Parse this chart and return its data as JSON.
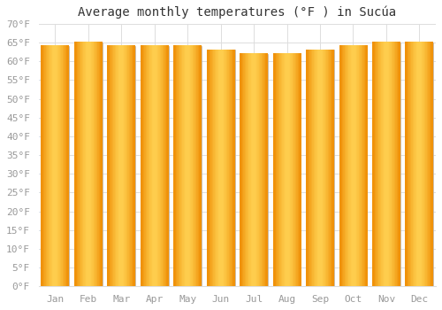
{
  "title": "Average monthly temperatures (°F ) in Sucúa",
  "months": [
    "Jan",
    "Feb",
    "Mar",
    "Apr",
    "May",
    "Jun",
    "Jul",
    "Aug",
    "Sep",
    "Oct",
    "Nov",
    "Dec"
  ],
  "values": [
    64,
    65,
    64,
    64,
    64,
    63,
    62,
    62,
    63,
    64,
    65,
    65
  ],
  "bar_color_center": "#FFD050",
  "bar_color_edge": "#F0920A",
  "bar_border_color": "#BBBBBB",
  "background_color": "#FFFFFF",
  "plot_bg_color": "#FFFFFF",
  "grid_color": "#DDDDDD",
  "ylim": [
    0,
    70
  ],
  "ytick_step": 5,
  "title_fontsize": 10,
  "tick_fontsize": 8,
  "tick_color": "#999999",
  "title_color": "#333333",
  "bar_width": 0.85
}
